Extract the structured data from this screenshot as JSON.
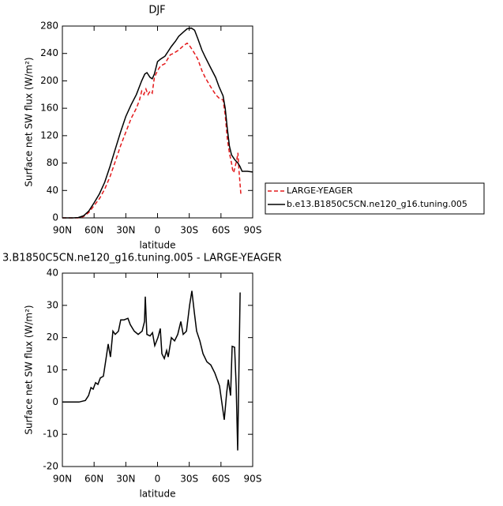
{
  "chart_data": [
    {
      "type": "line",
      "title": "DJF",
      "xlabel": "latitude",
      "ylabel": "Surface net SW flux (W/m²)",
      "xlim": [
        90,
        -90
      ],
      "ylim": [
        0,
        280
      ],
      "xticks": [
        {
          "value": 90,
          "label": "90N"
        },
        {
          "value": 60,
          "label": "60N"
        },
        {
          "value": 30,
          "label": "30N"
        },
        0,
        {
          "value": -30,
          "label": "30S"
        },
        {
          "value": -60,
          "label": "60S"
        },
        {
          "value": -90,
          "label": "90S"
        }
      ],
      "yticks": [
        0,
        40,
        80,
        120,
        160,
        200,
        240,
        280
      ],
      "legend": "outside-right",
      "series": [
        {
          "name": "LARGE-YEAGER",
          "color": "#e41a1c",
          "dash": true,
          "x": [
            90,
            75,
            70,
            65,
            60,
            55,
            50,
            45,
            40,
            35,
            30,
            25,
            20,
            17,
            15,
            13,
            11,
            9,
            7,
            5,
            3,
            0,
            -3,
            -7,
            -10,
            -12,
            -15,
            -20,
            -25,
            -28,
            -30,
            -33,
            -35,
            -38,
            -42,
            -45,
            -50,
            -55,
            -58,
            -62,
            -64,
            -66,
            -68,
            -70,
            -71,
            -72,
            -73,
            -75,
            -76,
            -77,
            -78.8
          ],
          "values": [
            0,
            0,
            2,
            8,
            18,
            28,
            42,
            60,
            82,
            105,
            125,
            145,
            160,
            172,
            185,
            180,
            188,
            180,
            185,
            182,
            205,
            215,
            222,
            225,
            233,
            238,
            240,
            245,
            252,
            255,
            252,
            245,
            240,
            232,
            215,
            205,
            192,
            180,
            175,
            172,
            150,
            115,
            95,
            80,
            70,
            66,
            72,
            85,
            95,
            70,
            35
          ]
        },
        {
          "name": "b.e13.B1850C5CN.ne120_g16.tuning.005",
          "color": "#000000",
          "dash": false,
          "x": [
            90,
            80,
            75,
            70,
            65,
            60,
            55,
            50,
            45,
            40,
            35,
            30,
            25,
            20,
            15,
            12,
            10,
            7,
            5,
            3,
            0,
            -3,
            -7,
            -10,
            -13,
            -17,
            -20,
            -25,
            -28,
            -32,
            -35,
            -38,
            -42,
            -45,
            -50,
            -55,
            -58,
            -62,
            -64,
            -66,
            -68,
            -70,
            -73,
            -76,
            -78,
            -80,
            -85,
            -90
          ],
          "values": [
            0,
            0,
            0.5,
            3,
            10,
            22,
            35,
            52,
            75,
            100,
            125,
            148,
            165,
            180,
            200,
            210,
            212,
            205,
            203,
            210,
            228,
            232,
            236,
            243,
            250,
            258,
            265,
            272,
            276,
            277,
            274,
            262,
            245,
            235,
            220,
            205,
            192,
            178,
            160,
            130,
            105,
            92,
            85,
            80,
            75,
            68,
            68,
            67
          ]
        }
      ]
    },
    {
      "type": "line",
      "title": "3.B1850C5CN.ne120_g16.tuning.005 - LARGE-YEAGER",
      "xlabel": "latitude",
      "ylabel": "Surface net SW flux (W/m²)",
      "xlim": [
        90,
        -90
      ],
      "ylim": [
        -20,
        40
      ],
      "xticks": [
        {
          "value": 90,
          "label": "90N"
        },
        {
          "value": 60,
          "label": "60N"
        },
        {
          "value": 30,
          "label": "30N"
        },
        0,
        {
          "value": -30,
          "label": "30S"
        },
        {
          "value": -60,
          "label": "60S"
        },
        {
          "value": -90,
          "label": "90S"
        }
      ],
      "yticks": [
        -20,
        -10,
        0,
        10,
        20,
        30,
        40
      ],
      "series": [
        {
          "color": "#000000",
          "dash": false,
          "x": [
            90,
            74.3,
            68.3,
            65.3,
            63,
            60.9,
            58.6,
            56.4,
            54.1,
            51.2,
            48.9,
            46.7,
            44.5,
            42.2,
            40,
            37,
            34.8,
            31.7,
            28,
            25.8,
            22,
            18.3,
            14.6,
            12.3,
            11.6,
            10.1,
            7.1,
            4.8,
            2.6,
            -0.4,
            -2.6,
            -4.1,
            -6.4,
            -8.6,
            -10.1,
            -13.1,
            -16.1,
            -19.1,
            -22,
            -24.3,
            -27.3,
            -30.3,
            -32.5,
            -34.7,
            -37,
            -40,
            -43,
            -46.7,
            -50.4,
            -54.2,
            -58.6,
            -61.6,
            -63.1,
            -65.4,
            -66.9,
            -69.1,
            -70.6,
            -72.9,
            -74.4,
            -75.8,
            -78.1
          ],
          "values": [
            0,
            0,
            0.5,
            2,
            4.5,
            4,
            6,
            5.5,
            7.5,
            8,
            13,
            18,
            14,
            22,
            21,
            22,
            25.5,
            25.5,
            26,
            24,
            22,
            21,
            22,
            25,
            32.7,
            21,
            20.5,
            21.5,
            17.5,
            20,
            22.8,
            15,
            13.5,
            16,
            14,
            20,
            19,
            21,
            25,
            21,
            22,
            30,
            34.5,
            28,
            22,
            19,
            15,
            12.5,
            11.5,
            9,
            5,
            -2,
            -5.5,
            3,
            7,
            2,
            17.3,
            17,
            5,
            -15,
            34
          ]
        }
      ]
    }
  ]
}
